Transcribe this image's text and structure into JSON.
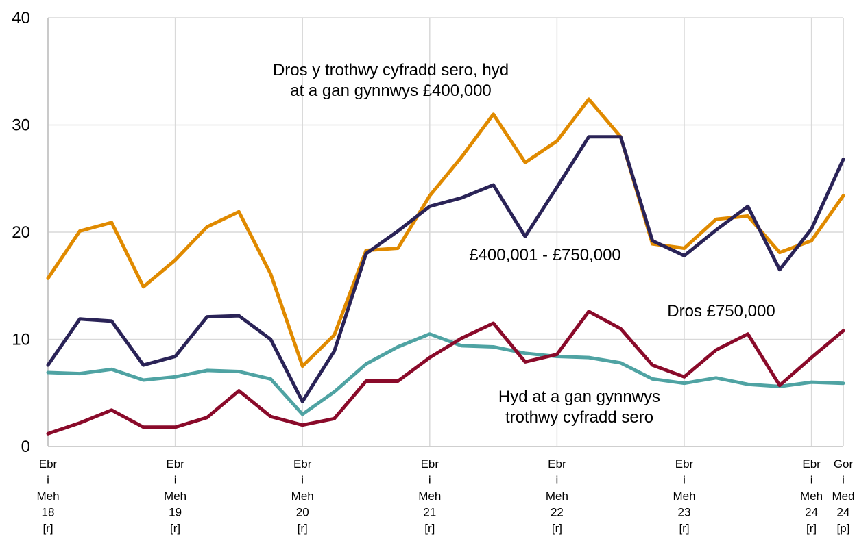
{
  "chart_data": {
    "type": "line",
    "ylim": [
      0,
      40
    ],
    "yticks": [
      "0",
      "10",
      "20",
      "30",
      "40"
    ],
    "grid": "on",
    "x_labels": [
      {
        "idx": 0,
        "lines": [
          "Ebr",
          "i",
          "Meh",
          "18",
          "[r]"
        ]
      },
      {
        "idx": 4,
        "lines": [
          "Ebr",
          "i",
          "Meh",
          "19",
          "[r]"
        ]
      },
      {
        "idx": 8,
        "lines": [
          "Ebr",
          "i",
          "Meh",
          "20",
          "[r]"
        ]
      },
      {
        "idx": 12,
        "lines": [
          "Ebr",
          "i",
          "Meh",
          "21",
          "[r]"
        ]
      },
      {
        "idx": 16,
        "lines": [
          "Ebr",
          "i",
          "Meh",
          "22",
          "[r]"
        ]
      },
      {
        "idx": 20,
        "lines": [
          "Ebr",
          "i",
          "Meh",
          "23",
          "[r]"
        ]
      },
      {
        "idx": 24,
        "lines": [
          "Ebr",
          "i",
          "Meh",
          "24",
          "[r]"
        ]
      },
      {
        "idx": 25,
        "lines": [
          "Gor",
          "i",
          "Med",
          "24",
          "[p]"
        ]
      }
    ],
    "series": [
      {
        "name": "Dros y trothwy cyfradd sero, hyd at a gan gynnwys £400,000",
        "color": "#e08a00",
        "values": [
          15.7,
          20.1,
          20.9,
          14.9,
          17.4,
          20.5,
          21.9,
          16.1,
          7.5,
          10.4,
          18.3,
          18.5,
          23.4,
          27.0,
          31.0,
          26.5,
          28.5,
          32.4,
          28.9,
          18.9,
          18.5,
          21.2,
          21.5,
          18.1,
          19.2,
          23.4
        ]
      },
      {
        "name": "£400,001 - £750,000",
        "color": "#2a2357",
        "values": [
          7.6,
          11.9,
          11.7,
          7.6,
          8.4,
          12.1,
          12.2,
          10.0,
          4.2,
          8.9,
          18.0,
          20.1,
          22.4,
          23.2,
          24.4,
          19.6,
          24.2,
          28.9,
          28.9,
          19.2,
          17.8,
          20.2,
          22.4,
          16.5,
          20.3,
          26.8
        ]
      },
      {
        "name": "Hyd at a gan gynnwys trothwy cyfradd sero",
        "color": "#4fa3a3",
        "values": [
          6.9,
          6.8,
          7.2,
          6.2,
          6.5,
          7.1,
          7.0,
          6.3,
          3.0,
          5.1,
          7.7,
          9.3,
          10.5,
          9.4,
          9.3,
          8.7,
          8.4,
          8.3,
          7.8,
          6.3,
          5.9,
          6.4,
          5.8,
          5.6,
          6.0,
          5.9
        ]
      },
      {
        "name": "Dros £750,000",
        "color": "#8a0a2a",
        "values": [
          1.2,
          2.2,
          3.4,
          1.8,
          1.8,
          2.7,
          5.2,
          2.8,
          2.0,
          2.6,
          6.1,
          6.1,
          8.3,
          10.1,
          11.5,
          7.9,
          8.6,
          12.6,
          11.0,
          7.6,
          6.5,
          9.0,
          10.5,
          5.7,
          8.3,
          10.8
        ]
      }
    ],
    "annotations": [
      {
        "series": 0,
        "lines": [
          "Dros y trothwy cyfradd sero, hyd",
          "at a gan gynnwys £400,000"
        ]
      },
      {
        "series": 1,
        "lines": [
          "£400,001 - £750,000"
        ]
      },
      {
        "series": 3,
        "lines": [
          "Dros £750,000"
        ]
      },
      {
        "series": 2,
        "lines": [
          "Hyd at a gan gynnwys",
          "trothwy cyfradd sero"
        ]
      }
    ]
  }
}
